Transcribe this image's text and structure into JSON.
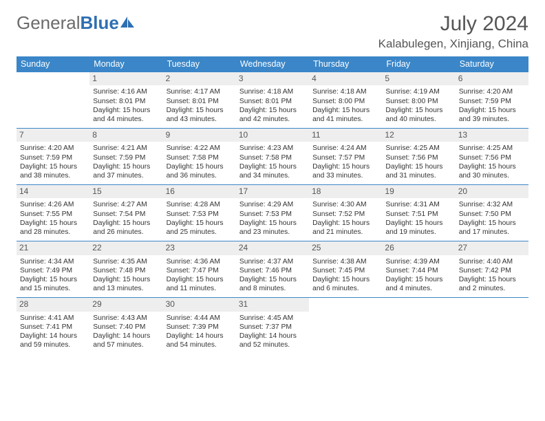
{
  "brand": {
    "part1": "General",
    "part2": "Blue"
  },
  "title": "July 2024",
  "location": "Kalabulegen, Xinjiang, China",
  "colors": {
    "header_bg": "#3a86c8",
    "header_text": "#ffffff",
    "daynum_bg": "#eeeeee",
    "row_border": "#3a86c8",
    "body_text": "#333333",
    "title_text": "#555555"
  },
  "fonts": {
    "month_title_pt": 30,
    "location_pt": 17,
    "day_header_pt": 12.5,
    "cell_pt": 10.3
  },
  "day_headers": [
    "Sunday",
    "Monday",
    "Tuesday",
    "Wednesday",
    "Thursday",
    "Friday",
    "Saturday"
  ],
  "start_weekday": 1,
  "days": [
    {
      "n": 1,
      "sunrise": "4:16 AM",
      "sunset": "8:01 PM",
      "daylight": "15 hours and 44 minutes."
    },
    {
      "n": 2,
      "sunrise": "4:17 AM",
      "sunset": "8:01 PM",
      "daylight": "15 hours and 43 minutes."
    },
    {
      "n": 3,
      "sunrise": "4:18 AM",
      "sunset": "8:01 PM",
      "daylight": "15 hours and 42 minutes."
    },
    {
      "n": 4,
      "sunrise": "4:18 AM",
      "sunset": "8:00 PM",
      "daylight": "15 hours and 41 minutes."
    },
    {
      "n": 5,
      "sunrise": "4:19 AM",
      "sunset": "8:00 PM",
      "daylight": "15 hours and 40 minutes."
    },
    {
      "n": 6,
      "sunrise": "4:20 AM",
      "sunset": "7:59 PM",
      "daylight": "15 hours and 39 minutes."
    },
    {
      "n": 7,
      "sunrise": "4:20 AM",
      "sunset": "7:59 PM",
      "daylight": "15 hours and 38 minutes."
    },
    {
      "n": 8,
      "sunrise": "4:21 AM",
      "sunset": "7:59 PM",
      "daylight": "15 hours and 37 minutes."
    },
    {
      "n": 9,
      "sunrise": "4:22 AM",
      "sunset": "7:58 PM",
      "daylight": "15 hours and 36 minutes."
    },
    {
      "n": 10,
      "sunrise": "4:23 AM",
      "sunset": "7:58 PM",
      "daylight": "15 hours and 34 minutes."
    },
    {
      "n": 11,
      "sunrise": "4:24 AM",
      "sunset": "7:57 PM",
      "daylight": "15 hours and 33 minutes."
    },
    {
      "n": 12,
      "sunrise": "4:25 AM",
      "sunset": "7:56 PM",
      "daylight": "15 hours and 31 minutes."
    },
    {
      "n": 13,
      "sunrise": "4:25 AM",
      "sunset": "7:56 PM",
      "daylight": "15 hours and 30 minutes."
    },
    {
      "n": 14,
      "sunrise": "4:26 AM",
      "sunset": "7:55 PM",
      "daylight": "15 hours and 28 minutes."
    },
    {
      "n": 15,
      "sunrise": "4:27 AM",
      "sunset": "7:54 PM",
      "daylight": "15 hours and 26 minutes."
    },
    {
      "n": 16,
      "sunrise": "4:28 AM",
      "sunset": "7:53 PM",
      "daylight": "15 hours and 25 minutes."
    },
    {
      "n": 17,
      "sunrise": "4:29 AM",
      "sunset": "7:53 PM",
      "daylight": "15 hours and 23 minutes."
    },
    {
      "n": 18,
      "sunrise": "4:30 AM",
      "sunset": "7:52 PM",
      "daylight": "15 hours and 21 minutes."
    },
    {
      "n": 19,
      "sunrise": "4:31 AM",
      "sunset": "7:51 PM",
      "daylight": "15 hours and 19 minutes."
    },
    {
      "n": 20,
      "sunrise": "4:32 AM",
      "sunset": "7:50 PM",
      "daylight": "15 hours and 17 minutes."
    },
    {
      "n": 21,
      "sunrise": "4:34 AM",
      "sunset": "7:49 PM",
      "daylight": "15 hours and 15 minutes."
    },
    {
      "n": 22,
      "sunrise": "4:35 AM",
      "sunset": "7:48 PM",
      "daylight": "15 hours and 13 minutes."
    },
    {
      "n": 23,
      "sunrise": "4:36 AM",
      "sunset": "7:47 PM",
      "daylight": "15 hours and 11 minutes."
    },
    {
      "n": 24,
      "sunrise": "4:37 AM",
      "sunset": "7:46 PM",
      "daylight": "15 hours and 8 minutes."
    },
    {
      "n": 25,
      "sunrise": "4:38 AM",
      "sunset": "7:45 PM",
      "daylight": "15 hours and 6 minutes."
    },
    {
      "n": 26,
      "sunrise": "4:39 AM",
      "sunset": "7:44 PM",
      "daylight": "15 hours and 4 minutes."
    },
    {
      "n": 27,
      "sunrise": "4:40 AM",
      "sunset": "7:42 PM",
      "daylight": "15 hours and 2 minutes."
    },
    {
      "n": 28,
      "sunrise": "4:41 AM",
      "sunset": "7:41 PM",
      "daylight": "14 hours and 59 minutes."
    },
    {
      "n": 29,
      "sunrise": "4:43 AM",
      "sunset": "7:40 PM",
      "daylight": "14 hours and 57 minutes."
    },
    {
      "n": 30,
      "sunrise": "4:44 AM",
      "sunset": "7:39 PM",
      "daylight": "14 hours and 54 minutes."
    },
    {
      "n": 31,
      "sunrise": "4:45 AM",
      "sunset": "7:37 PM",
      "daylight": "14 hours and 52 minutes."
    }
  ],
  "labels": {
    "sunrise": "Sunrise: ",
    "sunset": "Sunset: ",
    "daylight": "Daylight: "
  }
}
